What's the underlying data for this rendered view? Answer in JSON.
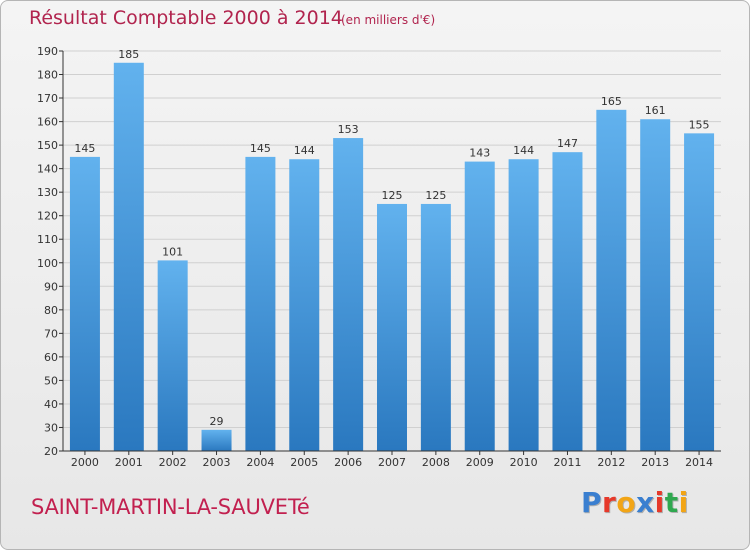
{
  "title": "Résultat Comptable 2000 à 2014",
  "subtitle": "(en milliers d'€)",
  "commune": "SAINT-MARTIN-LA-SAUVETé",
  "logo": {
    "text": "Proxiti",
    "letters": [
      {
        "ch": "P",
        "color": "#3a7fd0"
      },
      {
        "ch": "r",
        "color": "#e6392a"
      },
      {
        "ch": "o",
        "color": "#f2a516"
      },
      {
        "ch": "x",
        "color": "#3a7fd0"
      },
      {
        "ch": "i",
        "color": "#e6392a"
      },
      {
        "ch": "t",
        "color": "#2fa84f"
      },
      {
        "ch": "i",
        "color": "#f2a516"
      }
    ]
  },
  "colors": {
    "bar_top": "#62b2ee",
    "bar_bottom": "#2a78bf",
    "title": "#b1244e",
    "axis": "#333333",
    "grid": "#d0d0d0"
  },
  "chart_data": {
    "type": "bar",
    "title": "Résultat Comptable 2000 à 2014",
    "subtitle": "(en milliers d'€)",
    "xlabel": "",
    "ylabel": "",
    "categories": [
      "2000",
      "2001",
      "2002",
      "2003",
      "2004",
      "2005",
      "2006",
      "2007",
      "2008",
      "2009",
      "2010",
      "2011",
      "2012",
      "2013",
      "2014"
    ],
    "values": [
      145,
      185,
      101,
      29,
      145,
      144,
      153,
      125,
      125,
      143,
      144,
      147,
      165,
      161,
      155
    ],
    "ylim": [
      20,
      190
    ],
    "yticks": [
      20,
      30,
      40,
      50,
      60,
      70,
      80,
      90,
      100,
      110,
      120,
      130,
      140,
      150,
      160,
      170,
      180,
      190
    ],
    "grid": true,
    "data_labels": true
  }
}
